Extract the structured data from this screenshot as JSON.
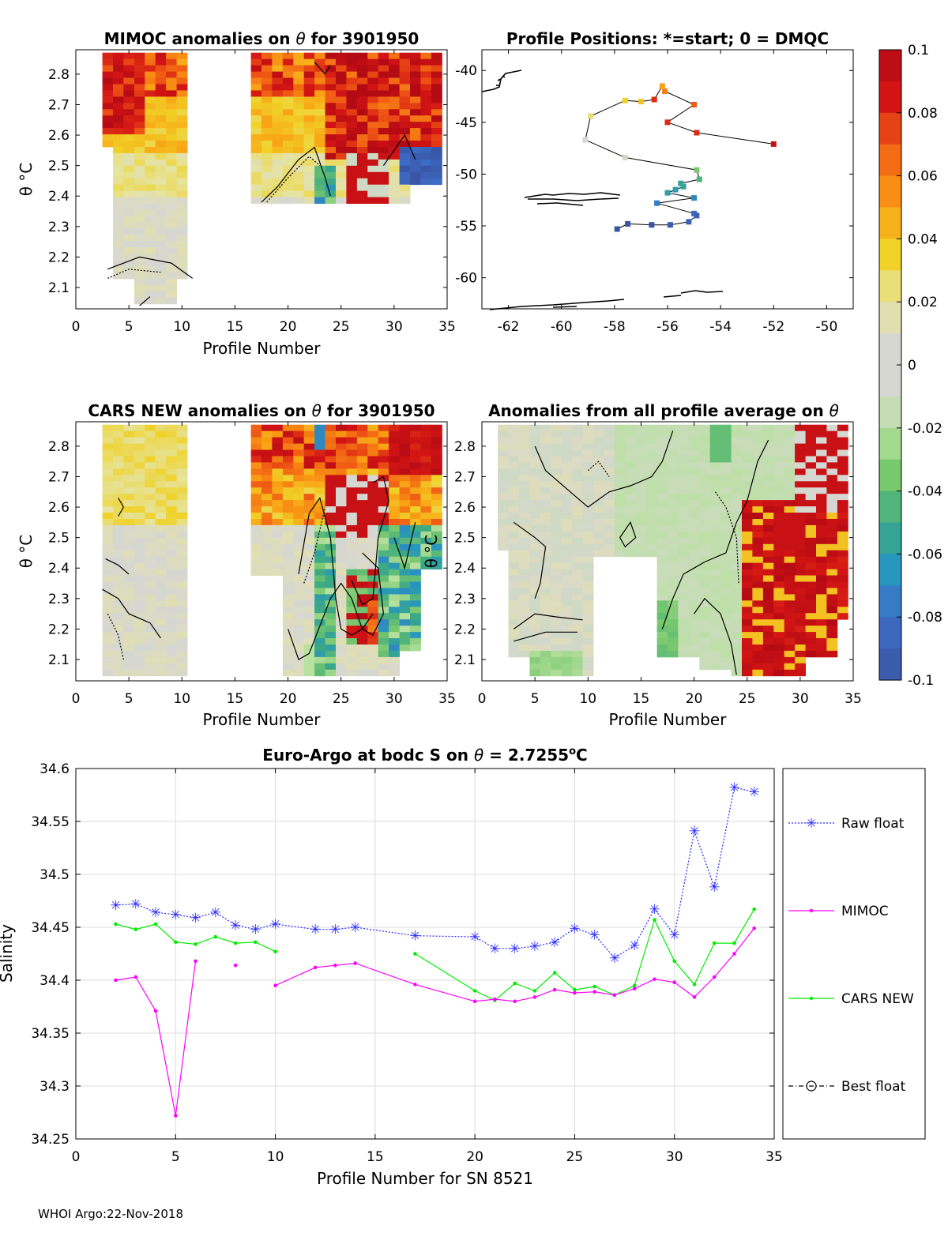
{
  "colors": {
    "raw": "#2a2aff",
    "mimoc": "#ff00ff",
    "cars": "#00ee00",
    "best": "#000000",
    "axis": "#000000",
    "grid": "#dcdcdc"
  },
  "colorbar": {
    "ticks": [
      "0.1",
      "0.08",
      "0.06",
      "0.04",
      "0.02",
      "0",
      "-0.02",
      "-0.04",
      "-0.06",
      "-0.08",
      "-0.1"
    ],
    "range": [
      -0.1,
      0.1
    ]
  },
  "panels": {
    "mimoc": {
      "title_a": "MIMOC anomalies on ",
      "title_sym": "θ",
      "title_b": "  for 3901950",
      "xlabel": "Profile Number",
      "ylabel": "θ °C",
      "xticks": [
        "0",
        "5",
        "10",
        "15",
        "20",
        "25",
        "30",
        "35"
      ],
      "yticks": [
        "2.8",
        "2.7",
        "2.6",
        "2.5",
        "2.4",
        "2.3",
        "2.2",
        "2.1"
      ]
    },
    "positions": {
      "title": "Profile Positions: *=start; 0 = DMQC",
      "xticks": [
        "-62",
        "-60",
        "-58",
        "-56",
        "-54",
        "-52",
        "-50"
      ],
      "yticks": [
        "-40",
        "-45",
        "-50",
        "-55",
        "-60"
      ]
    },
    "cars": {
      "title_a": "CARS NEW anomalies on ",
      "title_sym": "θ",
      "title_b": " for 3901950",
      "xlabel": "Profile Number",
      "ylabel": "θ °C",
      "xticks": [
        "0",
        "5",
        "10",
        "15",
        "20",
        "25",
        "30",
        "35"
      ],
      "yticks": [
        "2.8",
        "2.7",
        "2.6",
        "2.5",
        "2.4",
        "2.3",
        "2.2",
        "2.1"
      ]
    },
    "allavg": {
      "title_a": "Anomalies from all profile average on ",
      "title_sym": "θ",
      "xlabel": "Profile Number",
      "ylabel": "θ °C",
      "xticks": [
        "0",
        "5",
        "10",
        "15",
        "20",
        "25",
        "30",
        "35"
      ],
      "yticks": [
        "2.8",
        "2.7",
        "2.6",
        "2.5",
        "2.4",
        "2.3",
        "2.2",
        "2.1"
      ]
    }
  },
  "chart_data": [
    {
      "type": "heatmap",
      "title": "MIMOC anomalies on θ  for 3901950",
      "xlabel": "Profile Number",
      "ylabel": "θ °C",
      "xlim": [
        0,
        35
      ],
      "ylim": [
        2.03,
        2.88
      ],
      "colorbar_range": [
        -0.1,
        0.1
      ]
    },
    {
      "type": "scatter",
      "title": "Profile Positions: *=start; 0 = DMQC",
      "xlim": [
        -63,
        -49
      ],
      "ylim": [
        -63,
        -38
      ],
      "lon": [
        -52.0,
        -54.9,
        -56.0,
        -55.0,
        -56.1,
        -56.2,
        -56.5,
        -57.0,
        -57.6,
        -58.9,
        -59.1,
        -57.6,
        -54.9,
        -54.8,
        -55.5,
        -55.4,
        -55.7,
        -56.0,
        -55.0,
        -56.4,
        -55.0,
        -54.9,
        -55.2,
        -55.9,
        -56.6,
        -57.5,
        -57.9
      ],
      "lat": [
        -47.1,
        -46.0,
        -45.0,
        -43.3,
        -42.0,
        -41.5,
        -42.8,
        -43.0,
        -42.9,
        -44.4,
        -46.7,
        -48.4,
        -49.6,
        -50.5,
        -50.9,
        -51.2,
        -51.5,
        -51.8,
        -52.3,
        -52.8,
        -53.8,
        -54.0,
        -54.6,
        -54.9,
        -54.9,
        -54.8,
        -55.3
      ],
      "value": [
        0.09,
        0.08,
        0.08,
        0.07,
        0.06,
        0.05,
        0.08,
        0.04,
        0.035,
        0.025,
        0.0,
        -0.01,
        -0.035,
        -0.045,
        -0.055,
        -0.055,
        -0.06,
        -0.06,
        -0.07,
        -0.075,
        -0.085,
        -0.09,
        -0.09,
        -0.095,
        -0.1,
        -0.1,
        -0.1
      ]
    },
    {
      "type": "heatmap",
      "title": "CARS NEW anomalies on θ for 3901950",
      "xlabel": "Profile Number",
      "ylabel": "θ °C",
      "xlim": [
        0,
        35
      ],
      "ylim": [
        2.03,
        2.88
      ],
      "colorbar_range": [
        -0.1,
        0.1
      ]
    },
    {
      "type": "heatmap",
      "title": "Anomalies from all profile average on θ",
      "xlabel": "Profile Number",
      "ylabel": "θ °C",
      "xlim": [
        0,
        35
      ],
      "ylim": [
        2.03,
        2.88
      ],
      "colorbar_range": [
        -0.1,
        0.1
      ]
    },
    {
      "type": "line",
      "title_a": "Euro-Argo at bodc S on ",
      "title_sym": "θ",
      "title_b": " = 2.7255",
      "title_sup": "o",
      "title_c": "C",
      "xlabel": "Profile Number for SN 8521",
      "ylabel": "Salinity",
      "xlim": [
        0,
        35
      ],
      "ylim": [
        34.25,
        34.6
      ],
      "xticks": [
        "0",
        "5",
        "10",
        "15",
        "20",
        "25",
        "30",
        "35"
      ],
      "yticks": [
        "34.6",
        "34.55",
        "34.5",
        "34.45",
        "34.4",
        "34.35",
        "34.3",
        "34.25"
      ],
      "grid": true,
      "legend_position": "right",
      "series": [
        {
          "name": "Raw float",
          "x": [
            2,
            3,
            4,
            5,
            6,
            7,
            8,
            9,
            10,
            12,
            13,
            14,
            17,
            20,
            21,
            22,
            23,
            24,
            25,
            26,
            27,
            28,
            29,
            30,
            31,
            32,
            33,
            34
          ],
          "values": [
            34.471,
            34.472,
            34.464,
            34.462,
            34.459,
            34.464,
            34.452,
            34.448,
            34.453,
            34.448,
            34.448,
            34.45,
            34.442,
            34.441,
            34.43,
            34.43,
            34.432,
            34.436,
            34.449,
            34.443,
            34.421,
            34.433,
            34.467,
            34.443,
            34.541,
            34.488,
            34.582,
            34.578
          ]
        },
        {
          "name": "MIMOC",
          "x": [
            2,
            3,
            4,
            5,
            6,
            8,
            10,
            12,
            13,
            14,
            17,
            20,
            21,
            22,
            23,
            24,
            25,
            26,
            27,
            28,
            29,
            30,
            31,
            32,
            33,
            34
          ],
          "values": [
            34.4,
            34.403,
            34.371,
            34.272,
            34.418,
            34.414,
            34.395,
            34.412,
            34.414,
            34.416,
            34.396,
            34.38,
            34.382,
            34.38,
            34.384,
            34.391,
            34.388,
            34.389,
            34.386,
            34.392,
            34.401,
            34.398,
            34.384,
            34.403,
            34.425,
            34.449
          ],
          "segments": [
            [
              2,
              3,
              4,
              5,
              6
            ],
            [
              8
            ],
            [
              10,
              12,
              13,
              14,
              17,
              20,
              21,
              22,
              23,
              24,
              25,
              26,
              27,
              28,
              29,
              30,
              31,
              32,
              33,
              34
            ]
          ]
        },
        {
          "name": "CARS NEW",
          "x": [
            2,
            3,
            4,
            5,
            6,
            7,
            8,
            9,
            10,
            17,
            20,
            21,
            22,
            23,
            24,
            25,
            26,
            27,
            28,
            29,
            30,
            31,
            32,
            33,
            34
          ],
          "values": [
            34.453,
            34.448,
            34.453,
            34.436,
            34.434,
            34.441,
            34.435,
            34.436,
            34.427,
            34.425,
            34.39,
            34.381,
            34.397,
            34.39,
            34.407,
            34.391,
            34.394,
            34.386,
            34.395,
            34.457,
            34.418,
            34.396,
            34.435,
            34.435,
            34.467
          ],
          "segments": [
            [
              2,
              3,
              4,
              5,
              6,
              7,
              8,
              9,
              10
            ],
            [
              17,
              20,
              21,
              22,
              23,
              24,
              25,
              26,
              27,
              28,
              29,
              30,
              31,
              32,
              33,
              34
            ]
          ]
        },
        {
          "name": "Best float",
          "x": [],
          "values": []
        }
      ]
    }
  ],
  "footer": "WHOI Argo:22-Nov-2018"
}
